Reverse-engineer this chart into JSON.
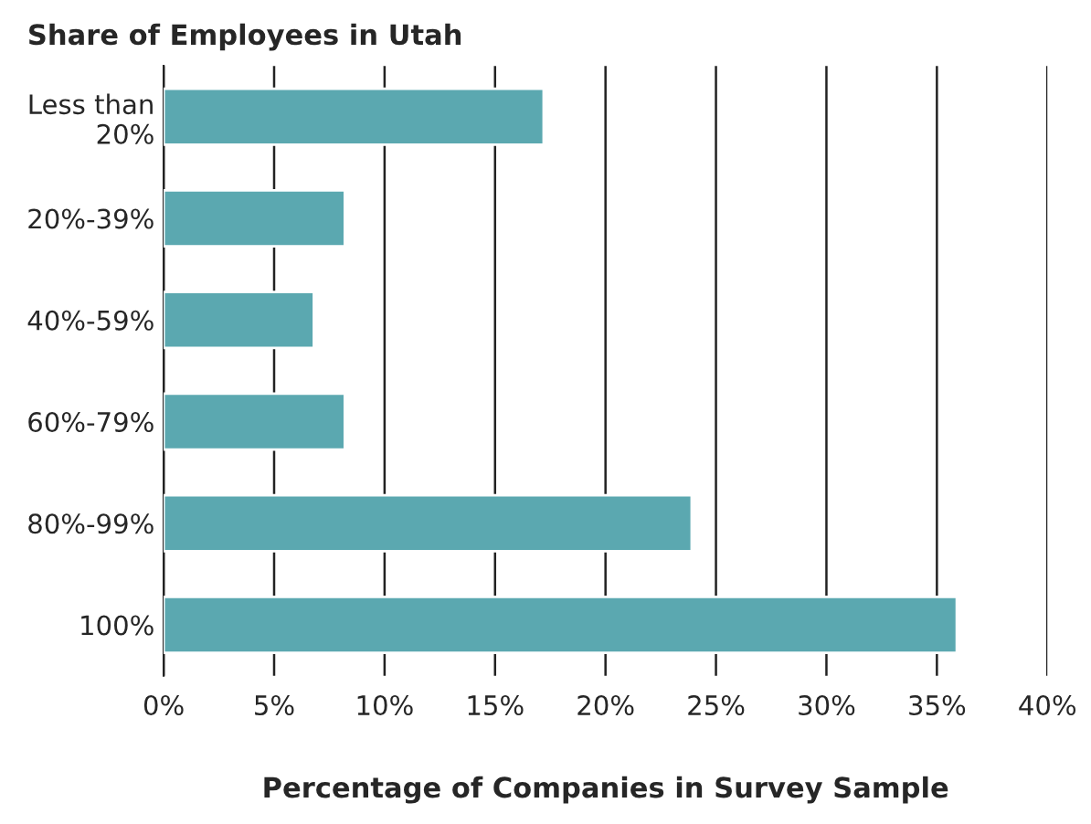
{
  "chart_data": {
    "type": "bar",
    "orientation": "horizontal",
    "title": "Share of Employees in Utah",
    "xlabel": "Percentage of Companies in Survey Sample",
    "categories": [
      "Less than\n20%",
      "20%-39%",
      "40%-59%",
      "60%-79%",
      "80%-99%",
      "100%"
    ],
    "values": [
      17.2,
      8.2,
      6.8,
      8.2,
      23.9,
      35.9
    ],
    "color": "#5ba8b0",
    "xlim": [
      0,
      40
    ],
    "xticks": [
      {
        "value": 0,
        "label": "0%"
      },
      {
        "value": 5,
        "label": "5%"
      },
      {
        "value": 10,
        "label": "10%"
      },
      {
        "value": 15,
        "label": "15%"
      },
      {
        "value": 20,
        "label": "20%"
      },
      {
        "value": 25,
        "label": "25%"
      },
      {
        "value": 30,
        "label": "30%"
      },
      {
        "value": 35,
        "label": "35%"
      },
      {
        "value": 40,
        "label": "40%"
      }
    ],
    "grid": "x"
  }
}
